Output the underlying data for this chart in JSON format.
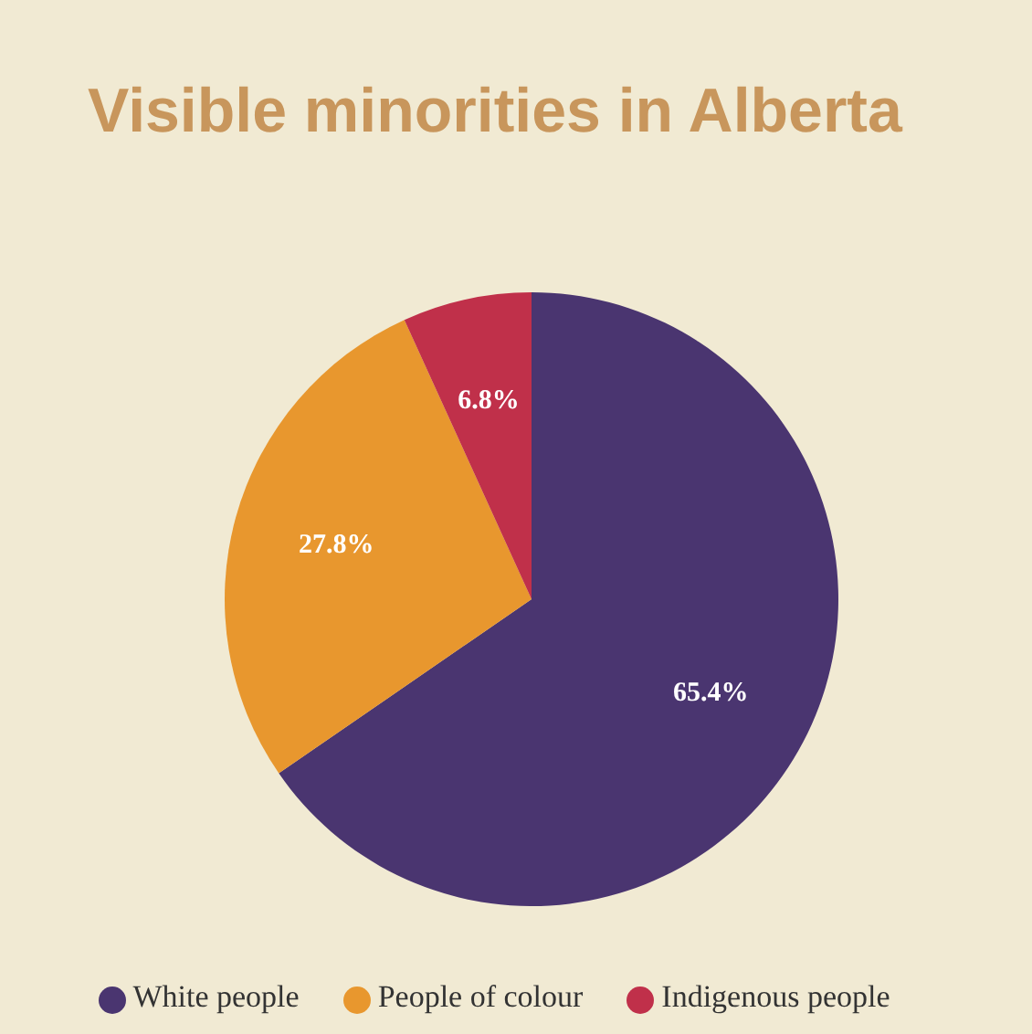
{
  "chart_data": {
    "type": "pie",
    "title": "Visible minorities in Alberta",
    "categories": [
      "White people",
      "People of colour",
      "Indigenous people"
    ],
    "values": [
      65.4,
      27.8,
      6.8
    ],
    "colors": [
      "#4a3570",
      "#e8972e",
      "#c0304a"
    ],
    "value_labels": [
      "65.4%",
      "27.8%",
      "6.8%"
    ],
    "legend": "bottom"
  }
}
